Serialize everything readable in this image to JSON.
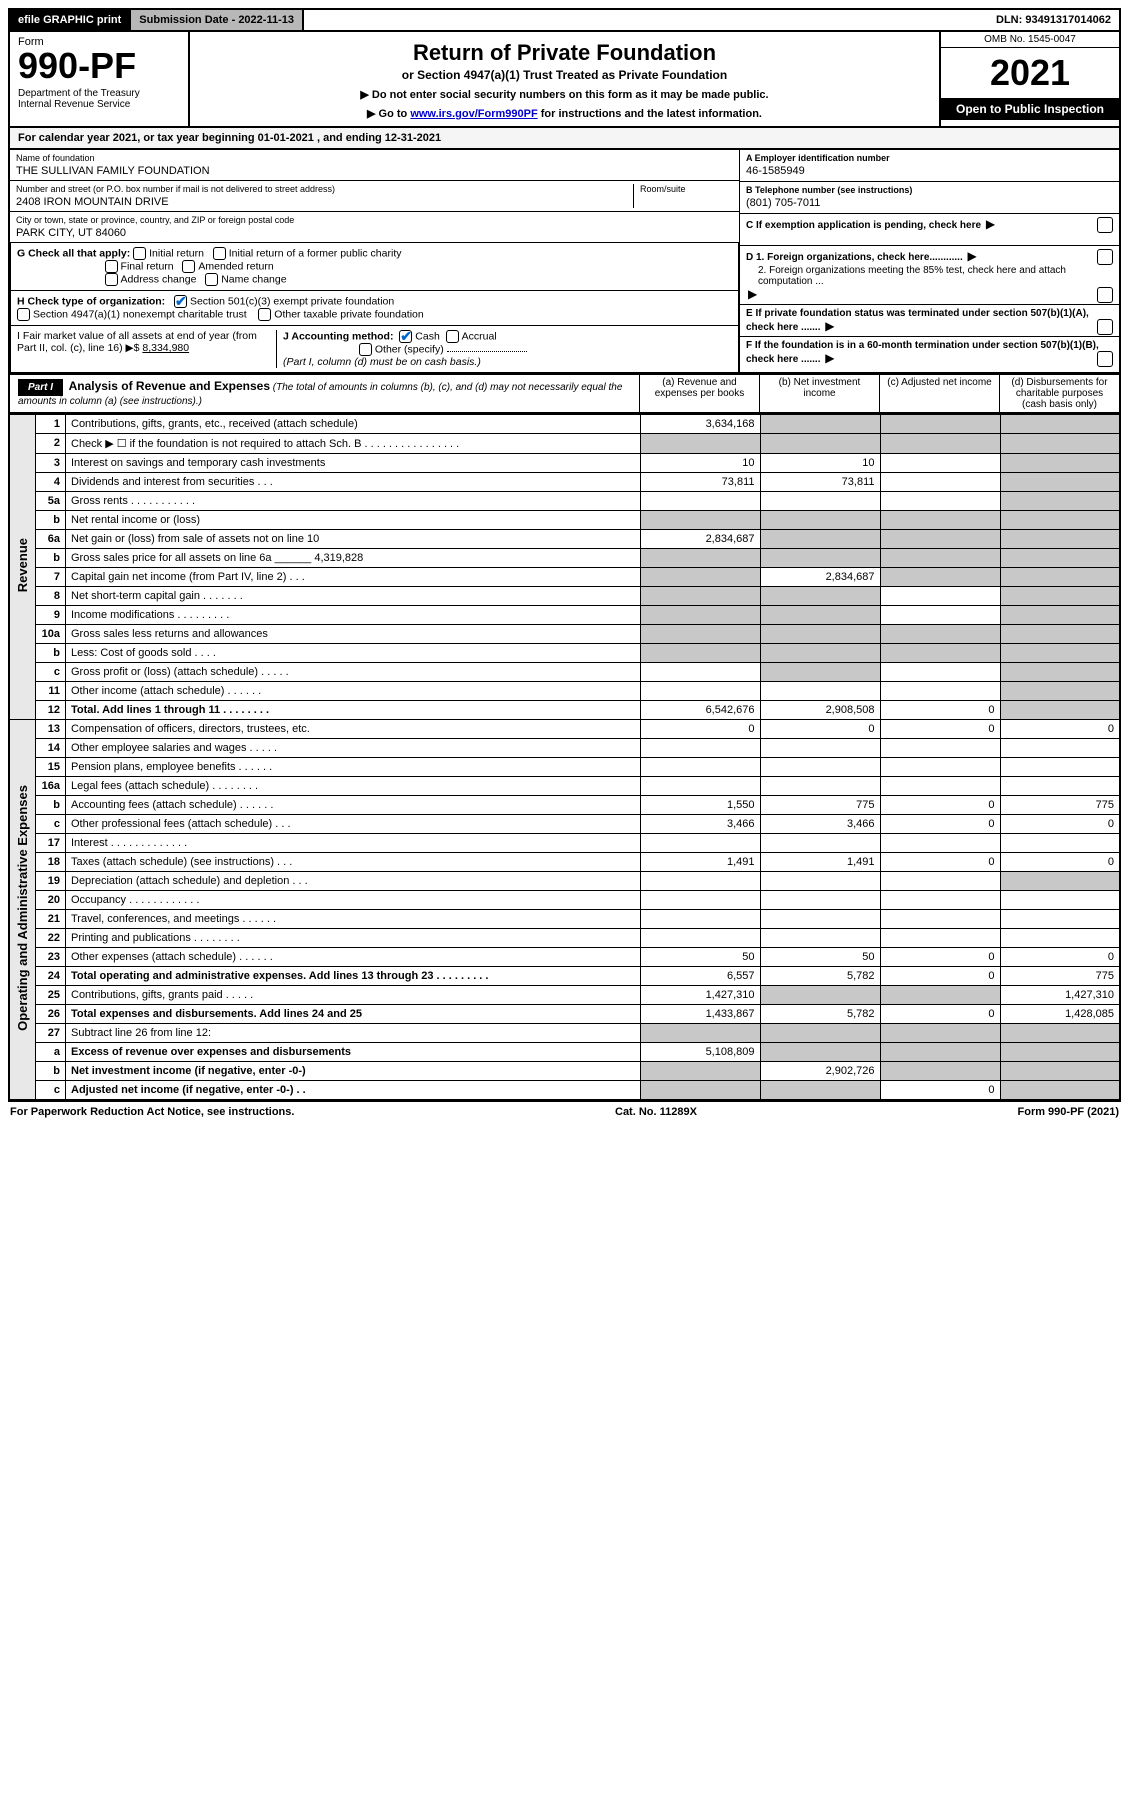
{
  "topbar": {
    "efile": "efile GRAPHIC print",
    "subdate_label": "Submission Date - 2022-11-13",
    "dln": "DLN: 93491317014062"
  },
  "header": {
    "form_label": "Form",
    "form_no": "990-PF",
    "dept": "Department of the Treasury\nInternal Revenue Service",
    "title": "Return of Private Foundation",
    "subtitle": "or Section 4947(a)(1) Trust Treated as Private Foundation",
    "note1": "▶ Do not enter social security numbers on this form as it may be made public.",
    "note2_pre": "▶ Go to ",
    "note2_link": "www.irs.gov/Form990PF",
    "note2_post": " for instructions and the latest information.",
    "omb": "OMB No. 1545-0047",
    "year": "2021",
    "open": "Open to Public Inspection"
  },
  "cal": "For calendar year 2021, or tax year beginning 01-01-2021            , and ending 12-31-2021",
  "name": {
    "label": "Name of foundation",
    "value": "THE SULLIVAN FAMILY FOUNDATION"
  },
  "ein": {
    "label": "A Employer identification number",
    "value": "46-1585949"
  },
  "street": {
    "label": "Number and street (or P.O. box number if mail is not delivered to street address)",
    "value": "2408 IRON MOUNTAIN DRIVE",
    "room_label": "Room/suite"
  },
  "phone": {
    "label": "B Telephone number (see instructions)",
    "value": "(801) 705-7011"
  },
  "city": {
    "label": "City or town, state or province, country, and ZIP or foreign postal code",
    "value": "PARK CITY, UT  84060"
  },
  "boxC": "C If exemption application is pending, check here",
  "boxG_label": "G Check all that apply:",
  "g_opts": {
    "initial": "Initial return",
    "initial_former": "Initial return of a former public charity",
    "final": "Final return",
    "amended": "Amended return",
    "address": "Address change",
    "name": "Name change"
  },
  "boxD1": "D 1. Foreign organizations, check here............",
  "boxD2": "2. Foreign organizations meeting the 85% test, check here and attach computation ...",
  "boxE": "E If private foundation status was terminated under section 507(b)(1)(A), check here .......",
  "boxH_label": "H Check type of organization:",
  "h_opts": {
    "501c3": "Section 501(c)(3) exempt private foundation",
    "4947": "Section 4947(a)(1) nonexempt charitable trust",
    "other_tax": "Other taxable private foundation"
  },
  "boxI": {
    "label": "I Fair market value of all assets at end of year (from Part II, col. (c), line 16) ▶$",
    "value": "8,334,980"
  },
  "boxJ": {
    "label": "J Accounting method:",
    "cash": "Cash",
    "accrual": "Accrual",
    "other": "Other (specify)",
    "note": "(Part I, column (d) must be on cash basis.)"
  },
  "boxF": "F If the foundation is in a 60-month termination under section 507(b)(1)(B), check here .......",
  "part1": {
    "title": "Part I",
    "heading": "Analysis of Revenue and Expenses",
    "sub": "(The total of amounts in columns (b), (c), and (d) may not necessarily equal the amounts in column (a) (see instructions).)",
    "col_a": "(a) Revenue and expenses per books",
    "col_b": "(b) Net investment income",
    "col_c": "(c) Adjusted net income",
    "col_d": "(d) Disbursements for charitable purposes (cash basis only)"
  },
  "side_rev": "Revenue",
  "side_exp": "Operating and Administrative Expenses",
  "rows": [
    {
      "n": "1",
      "label": "Contributions, gifts, grants, etc., received (attach schedule)",
      "a": "3,634,168",
      "b": "",
      "c": "",
      "d": "",
      "shade_bcd": true
    },
    {
      "n": "2",
      "label": "Check ▶ ☐ if the foundation is not required to attach Sch. B  . . . . . . . . . . . . . . . .",
      "a": "",
      "b": "",
      "c": "",
      "d": "",
      "shade_all": true
    },
    {
      "n": "3",
      "label": "Interest on savings and temporary cash investments",
      "a": "10",
      "b": "10",
      "c": "",
      "d": "",
      "shade_d": true
    },
    {
      "n": "4",
      "label": "Dividends and interest from securities   .  .  .",
      "a": "73,811",
      "b": "73,811",
      "c": "",
      "d": "",
      "shade_d": true
    },
    {
      "n": "5a",
      "label": "Gross rents   .  .  .  .  .  .  .  .  .  .  .",
      "a": "",
      "b": "",
      "c": "",
      "d": "",
      "shade_d": true
    },
    {
      "n": "b",
      "label": "Net rental income or (loss)",
      "a": "",
      "b": "",
      "c": "",
      "d": "",
      "shade_all": true
    },
    {
      "n": "6a",
      "label": "Net gain or (loss) from sale of assets not on line 10",
      "a": "2,834,687",
      "b": "",
      "c": "",
      "d": "",
      "shade_bcd": true
    },
    {
      "n": "b",
      "label": "Gross sales price for all assets on line 6a ______ 4,319,828",
      "a": "",
      "b": "",
      "c": "",
      "d": "",
      "shade_all": true
    },
    {
      "n": "7",
      "label": "Capital gain net income (from Part IV, line 2)   .  .  .",
      "a": "",
      "b": "2,834,687",
      "c": "",
      "d": "",
      "shade_a": true,
      "shade_cd": true
    },
    {
      "n": "8",
      "label": "Net short-term capital gain  .  .  .  .  .  .  .",
      "a": "",
      "b": "",
      "c": "",
      "d": "",
      "shade_ab": true,
      "shade_d": true
    },
    {
      "n": "9",
      "label": "Income modifications  .  .  .  .  .  .  .  .  .",
      "a": "",
      "b": "",
      "c": "",
      "d": "",
      "shade_ab": true,
      "shade_d": true
    },
    {
      "n": "10a",
      "label": "Gross sales less returns and allowances",
      "a": "",
      "b": "",
      "c": "",
      "d": "",
      "shade_all": true
    },
    {
      "n": "b",
      "label": "Less: Cost of goods sold   .  .  .  .",
      "a": "",
      "b": "",
      "c": "",
      "d": "",
      "shade_all": true
    },
    {
      "n": "c",
      "label": "Gross profit or (loss) (attach schedule)   .  .  .  .  .",
      "a": "",
      "b": "",
      "c": "",
      "d": "",
      "shade_b": true,
      "shade_d": true
    },
    {
      "n": "11",
      "label": "Other income (attach schedule)   .  .  .  .  .  .",
      "a": "",
      "b": "",
      "c": "",
      "d": "",
      "shade_d": true
    },
    {
      "n": "12",
      "label": "Total. Add lines 1 through 11   .  .  .  .  .  .  .  .",
      "a": "6,542,676",
      "b": "2,908,508",
      "c": "0",
      "d": "",
      "bold": true,
      "shade_d": true
    },
    {
      "n": "13",
      "label": "Compensation of officers, directors, trustees, etc.",
      "a": "0",
      "b": "0",
      "c": "0",
      "d": "0"
    },
    {
      "n": "14",
      "label": "Other employee salaries and wages   .  .  .  .  .",
      "a": "",
      "b": "",
      "c": "",
      "d": ""
    },
    {
      "n": "15",
      "label": "Pension plans, employee benefits  .  .  .  .  .  .",
      "a": "",
      "b": "",
      "c": "",
      "d": ""
    },
    {
      "n": "16a",
      "label": "Legal fees (attach schedule)  .  .  .  .  .  .  .  .",
      "a": "",
      "b": "",
      "c": "",
      "d": ""
    },
    {
      "n": "b",
      "label": "Accounting fees (attach schedule)  .  .  .  .  .  .",
      "a": "1,550",
      "b": "775",
      "c": "0",
      "d": "775"
    },
    {
      "n": "c",
      "label": "Other professional fees (attach schedule)   .  .  .",
      "a": "3,466",
      "b": "3,466",
      "c": "0",
      "d": "0"
    },
    {
      "n": "17",
      "label": "Interest  .  .  .  .  .  .  .  .  .  .  .  .  .",
      "a": "",
      "b": "",
      "c": "",
      "d": ""
    },
    {
      "n": "18",
      "label": "Taxes (attach schedule) (see instructions)   .  .  .",
      "a": "1,491",
      "b": "1,491",
      "c": "0",
      "d": "0"
    },
    {
      "n": "19",
      "label": "Depreciation (attach schedule) and depletion   .  .  .",
      "a": "",
      "b": "",
      "c": "",
      "d": "",
      "shade_d": true
    },
    {
      "n": "20",
      "label": "Occupancy  .  .  .  .  .  .  .  .  .  .  .  .",
      "a": "",
      "b": "",
      "c": "",
      "d": ""
    },
    {
      "n": "21",
      "label": "Travel, conferences, and meetings  .  .  .  .  .  .",
      "a": "",
      "b": "",
      "c": "",
      "d": ""
    },
    {
      "n": "22",
      "label": "Printing and publications  .  .  .  .  .  .  .  .",
      "a": "",
      "b": "",
      "c": "",
      "d": ""
    },
    {
      "n": "23",
      "label": "Other expenses (attach schedule)  .  .  .  .  .  .",
      "a": "50",
      "b": "50",
      "c": "0",
      "d": "0"
    },
    {
      "n": "24",
      "label": "Total operating and administrative expenses. Add lines 13 through 23   .  .  .  .  .  .  .  .  .",
      "a": "6,557",
      "b": "5,782",
      "c": "0",
      "d": "775",
      "bold": true
    },
    {
      "n": "25",
      "label": "Contributions, gifts, grants paid   .  .  .  .  .",
      "a": "1,427,310",
      "b": "",
      "c": "",
      "d": "1,427,310",
      "shade_bc": true
    },
    {
      "n": "26",
      "label": "Total expenses and disbursements. Add lines 24 and 25",
      "a": "1,433,867",
      "b": "5,782",
      "c": "0",
      "d": "1,428,085",
      "bold": true
    },
    {
      "n": "27",
      "label": "Subtract line 26 from line 12:",
      "a": "",
      "b": "",
      "c": "",
      "d": "",
      "shade_all": true
    },
    {
      "n": "a",
      "label": "Excess of revenue over expenses and disbursements",
      "a": "5,108,809",
      "b": "",
      "c": "",
      "d": "",
      "bold": true,
      "shade_bcd": true
    },
    {
      "n": "b",
      "label": "Net investment income (if negative, enter -0-)",
      "a": "",
      "b": "2,902,726",
      "c": "",
      "d": "",
      "bold": true,
      "shade_a": true,
      "shade_cd": true
    },
    {
      "n": "c",
      "label": "Adjusted net income (if negative, enter -0-)  .  .",
      "a": "",
      "b": "",
      "c": "0",
      "d": "",
      "bold": true,
      "shade_ab": true,
      "shade_d": true
    }
  ],
  "footer": {
    "left": "For Paperwork Reduction Act Notice, see instructions.",
    "center": "Cat. No. 11289X",
    "right": "Form 990-PF (2021)"
  }
}
